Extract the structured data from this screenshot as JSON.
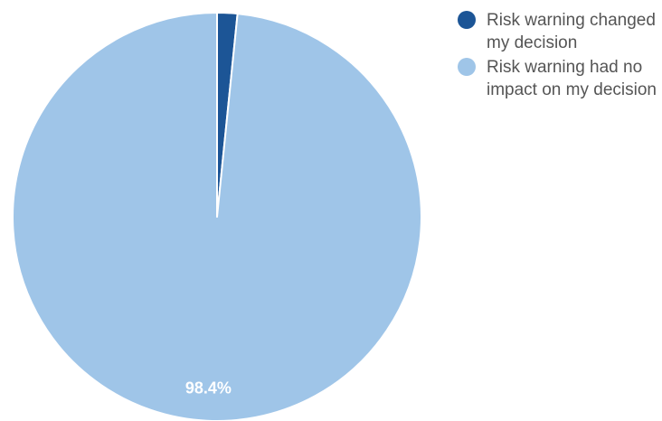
{
  "chart_data": {
    "type": "pie",
    "title": "",
    "slices": [
      {
        "label": "Risk warning changed my decision",
        "value": 1.6,
        "color": "#1c5596"
      },
      {
        "label": "Risk warning had no impact on my decision",
        "value": 98.4,
        "color": "#9fc5e8"
      }
    ],
    "data_labels": [
      "",
      "98.4%"
    ],
    "start_angle_deg": 0,
    "direction": "clockwise",
    "legend_position": "top-right"
  }
}
